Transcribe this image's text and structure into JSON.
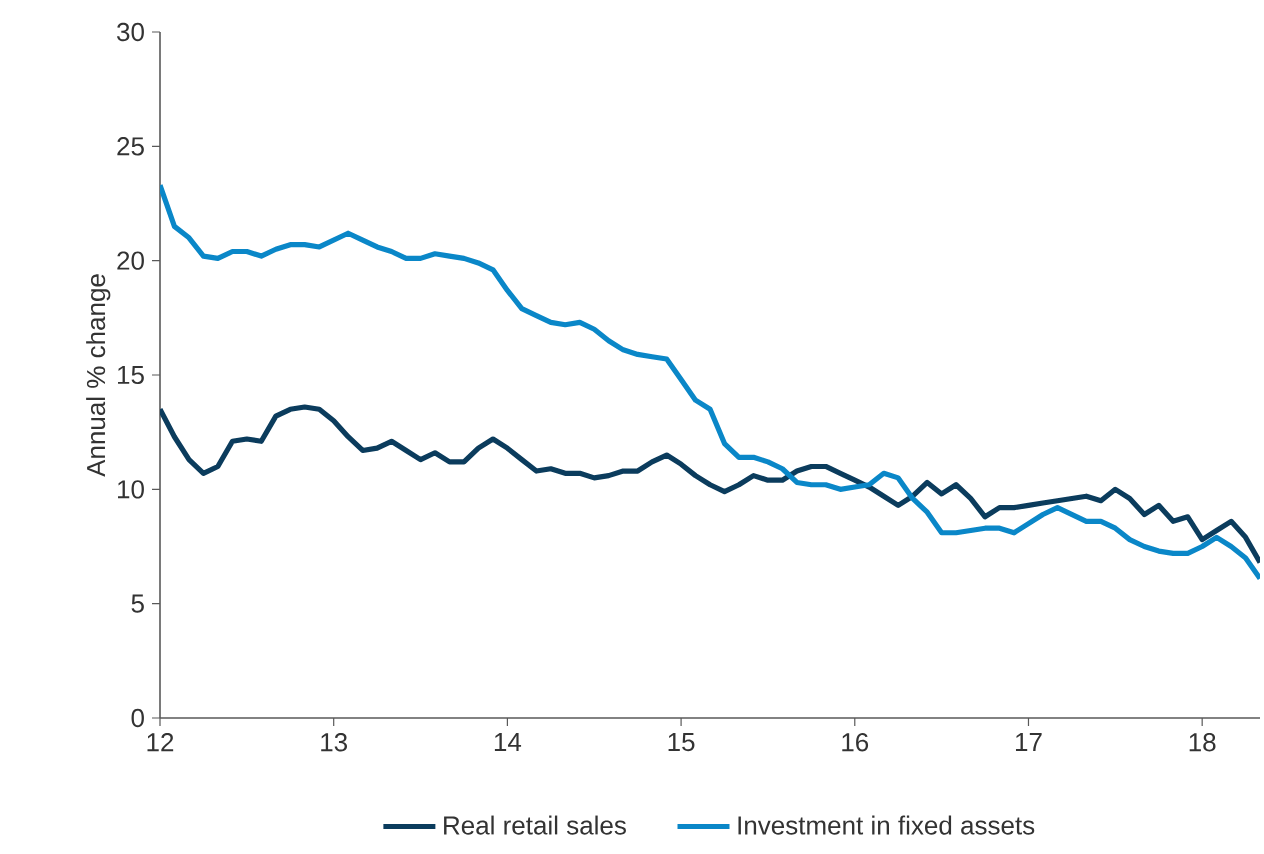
{
  "chart_data": {
    "type": "line",
    "ylabel": "Annual % change",
    "x": [
      12,
      12.083,
      12.167,
      12.25,
      12.333,
      12.417,
      12.5,
      12.583,
      12.667,
      12.75,
      12.833,
      12.917,
      13,
      13.083,
      13.167,
      13.25,
      13.333,
      13.417,
      13.5,
      13.583,
      13.667,
      13.75,
      13.833,
      13.917,
      14,
      14.083,
      14.167,
      14.25,
      14.333,
      14.417,
      14.5,
      14.583,
      14.667,
      14.75,
      14.833,
      14.917,
      15,
      15.083,
      15.167,
      15.25,
      15.333,
      15.417,
      15.5,
      15.583,
      15.667,
      15.75,
      15.833,
      15.917,
      16,
      16.083,
      16.167,
      16.25,
      16.333,
      16.417,
      16.5,
      16.583,
      16.667,
      16.75,
      16.833,
      16.917,
      17,
      17.083,
      17.167,
      17.25,
      17.333,
      17.417,
      17.5,
      17.583,
      17.667,
      17.75,
      17.833,
      17.917,
      18,
      18.083,
      18.167,
      18.25,
      18.333
    ],
    "series": [
      {
        "name": "Real retail sales",
        "color": "#0b3c5d",
        "values": [
          13.5,
          12.3,
          11.3,
          10.7,
          11.0,
          12.1,
          12.2,
          12.1,
          13.2,
          13.5,
          13.6,
          13.5,
          13.0,
          12.3,
          11.7,
          11.8,
          12.1,
          11.7,
          11.3,
          11.6,
          11.2,
          11.2,
          11.8,
          12.2,
          11.8,
          11.3,
          10.8,
          10.9,
          10.7,
          10.7,
          10.5,
          10.6,
          10.8,
          10.8,
          11.2,
          11.5,
          11.1,
          10.6,
          10.2,
          9.9,
          10.2,
          10.6,
          10.4,
          10.4,
          10.8,
          11.0,
          11.0,
          10.7,
          10.4,
          10.1,
          9.7,
          9.3,
          9.7,
          10.3,
          9.8,
          10.2,
          9.6,
          8.8,
          9.2,
          9.2,
          9.3,
          9.4,
          9.5,
          9.6,
          9.7,
          9.5,
          10.0,
          9.6,
          8.9,
          9.3,
          8.6,
          8.8,
          7.8,
          8.2,
          8.6,
          7.9,
          6.8
        ]
      },
      {
        "name": "Investment in fixed assets",
        "color": "#0a87c8",
        "values": [
          23.3,
          21.5,
          21.0,
          20.2,
          20.1,
          20.4,
          20.4,
          20.2,
          20.5,
          20.7,
          20.7,
          20.6,
          20.9,
          21.2,
          20.9,
          20.6,
          20.4,
          20.1,
          20.1,
          20.3,
          20.2,
          20.1,
          19.9,
          19.6,
          18.7,
          17.9,
          17.6,
          17.3,
          17.2,
          17.3,
          17.0,
          16.5,
          16.1,
          15.9,
          15.8,
          15.7,
          14.8,
          13.9,
          13.5,
          12.0,
          11.4,
          11.4,
          11.2,
          10.9,
          10.3,
          10.2,
          10.2,
          10.0,
          10.1,
          10.2,
          10.7,
          10.5,
          9.6,
          9.0,
          8.1,
          8.1,
          8.2,
          8.3,
          8.3,
          8.1,
          8.5,
          8.9,
          9.2,
          8.9,
          8.6,
          8.6,
          8.3,
          7.8,
          7.5,
          7.3,
          7.2,
          7.2,
          7.5,
          7.9,
          7.5,
          7.0,
          6.1
        ]
      }
    ],
    "xlim": [
      12,
      18.333
    ],
    "ylim": [
      0,
      30
    ],
    "xticks": [
      12,
      13,
      14,
      15,
      16,
      17,
      18
    ],
    "yticks": [
      0,
      5,
      10,
      15,
      20,
      25,
      30
    ],
    "grid": false,
    "legend": "bottom",
    "marker": "none",
    "line_style": "solid"
  }
}
